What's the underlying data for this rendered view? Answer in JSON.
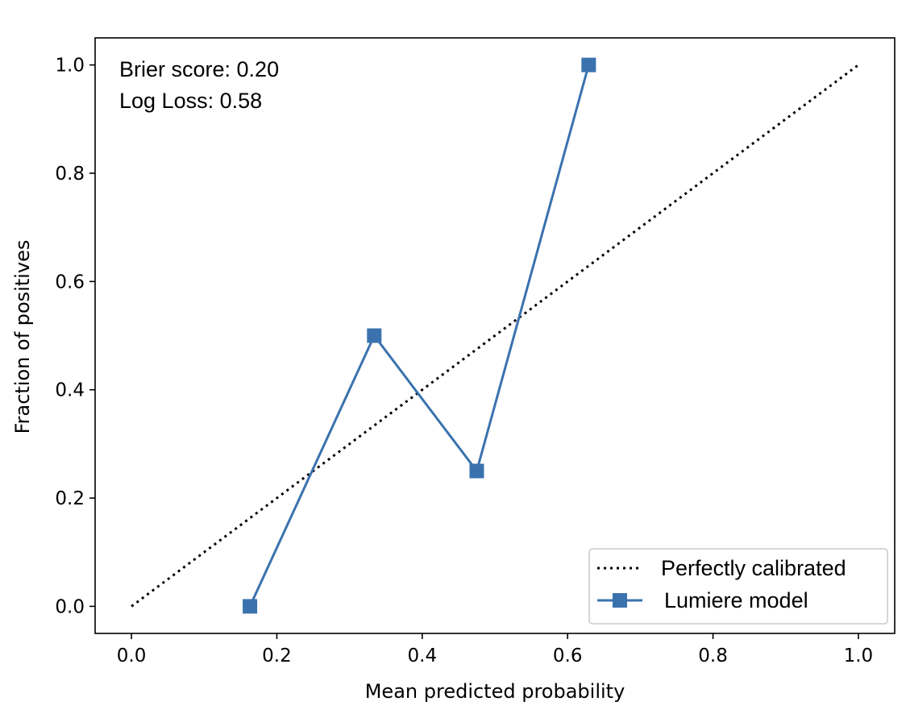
{
  "chart_data": {
    "type": "line",
    "title": "",
    "xlabel": "Mean predicted probability",
    "ylabel": "Fraction of positives",
    "xlim": [
      -0.05,
      1.05
    ],
    "ylim": [
      -0.05,
      1.05
    ],
    "xticks": [
      0.0,
      0.2,
      0.4,
      0.6,
      0.8,
      1.0
    ],
    "yticks": [
      0.0,
      0.2,
      0.4,
      0.6,
      0.8,
      1.0
    ],
    "xtick_labels": [
      "0.0",
      "0.2",
      "0.4",
      "0.6",
      "0.8",
      "1.0"
    ],
    "ytick_labels": [
      "0.0",
      "0.2",
      "0.4",
      "0.6",
      "0.8",
      "1.0"
    ],
    "grid": false,
    "legend_position": "bottom-right",
    "series": [
      {
        "name": "Perfectly calibrated",
        "style": "dotted",
        "color": "#000000",
        "x": [
          0.0,
          1.0
        ],
        "y": [
          0.0,
          1.0
        ]
      },
      {
        "name": "Lumiere model",
        "style": "solid",
        "marker": "square",
        "color": "#3a72ae",
        "x": [
          0.163,
          0.334,
          0.475,
          0.629
        ],
        "y": [
          0.0,
          0.5,
          0.25,
          1.0
        ]
      }
    ],
    "annotations": [
      "Brier score: 0.20",
      "Log Loss: 0.58"
    ]
  }
}
